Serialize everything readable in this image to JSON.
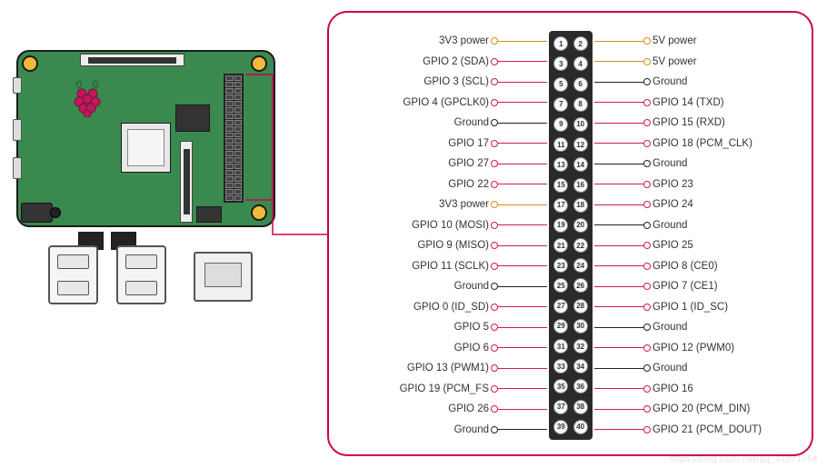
{
  "colors": {
    "pcb": "#3a8a4f",
    "pcb_border": "#1a1a1a",
    "hole": "#f4b93a",
    "panel_border": "#cc0052",
    "pin_header_bg": "#2a2a2a",
    "type_power": "#e08a1e",
    "type_ground": "#222222",
    "type_gpio": "#d11a5a",
    "wire_len_left_default": 58,
    "wire_len_right_default": 58
  },
  "board": {
    "logo_fill": "#c2185b",
    "logo_leaf": "#3a8a4f"
  },
  "pins_left": [
    {
      "n": 1,
      "label": "3V3 power",
      "type": "power"
    },
    {
      "n": 3,
      "label": "GPIO 2 (SDA)",
      "type": "gpio"
    },
    {
      "n": 5,
      "label": "GPIO 3 (SCL)",
      "type": "gpio"
    },
    {
      "n": 7,
      "label": "GPIO 4 (GPCLK0)",
      "type": "gpio"
    },
    {
      "n": 9,
      "label": "Ground",
      "type": "ground"
    },
    {
      "n": 11,
      "label": "GPIO 17",
      "type": "gpio"
    },
    {
      "n": 13,
      "label": "GPIO 27",
      "type": "gpio"
    },
    {
      "n": 15,
      "label": "GPIO 22",
      "type": "gpio"
    },
    {
      "n": 17,
      "label": "3V3 power",
      "type": "power"
    },
    {
      "n": 19,
      "label": "GPIO 10 (MOSI)",
      "type": "gpio"
    },
    {
      "n": 21,
      "label": "GPIO 9 (MISO)",
      "type": "gpio"
    },
    {
      "n": 23,
      "label": "GPIO 11 (SCLK)",
      "type": "gpio"
    },
    {
      "n": 25,
      "label": "Ground",
      "type": "ground"
    },
    {
      "n": 27,
      "label": "GPIO 0 (ID_SD)",
      "type": "gpio"
    },
    {
      "n": 29,
      "label": "GPIO 5",
      "type": "gpio"
    },
    {
      "n": 31,
      "label": "GPIO 6",
      "type": "gpio"
    },
    {
      "n": 33,
      "label": "GPIO 13 (PWM1)",
      "type": "gpio"
    },
    {
      "n": 35,
      "label": "GPIO 19 (PCM_FS",
      "type": "gpio"
    },
    {
      "n": 37,
      "label": "GPIO 26",
      "type": "gpio"
    },
    {
      "n": 39,
      "label": "Ground",
      "type": "ground"
    }
  ],
  "pins_right": [
    {
      "n": 2,
      "label": "5V power",
      "type": "power"
    },
    {
      "n": 4,
      "label": "5V power",
      "type": "power"
    },
    {
      "n": 6,
      "label": "Ground",
      "type": "ground"
    },
    {
      "n": 8,
      "label": "GPIO 14 (TXD)",
      "type": "gpio"
    },
    {
      "n": 10,
      "label": "GPIO 15 (RXD)",
      "type": "gpio"
    },
    {
      "n": 12,
      "label": "GPIO 18 (PCM_CLK)",
      "type": "gpio"
    },
    {
      "n": 14,
      "label": "Ground",
      "type": "ground"
    },
    {
      "n": 16,
      "label": "GPIO 23",
      "type": "gpio"
    },
    {
      "n": 18,
      "label": "GPIO 24",
      "type": "gpio"
    },
    {
      "n": 20,
      "label": "Ground",
      "type": "ground"
    },
    {
      "n": 22,
      "label": "GPIO 25",
      "type": "gpio"
    },
    {
      "n": 24,
      "label": "GPIO 8 (CE0)",
      "type": "gpio"
    },
    {
      "n": 26,
      "label": "GPIO 7 (CE1)",
      "type": "gpio"
    },
    {
      "n": 28,
      "label": "GPIO 1 (ID_SC)",
      "type": "gpio"
    },
    {
      "n": 30,
      "label": "Ground",
      "type": "ground"
    },
    {
      "n": 32,
      "label": "GPIO 12 (PWM0)",
      "type": "gpio"
    },
    {
      "n": 34,
      "label": "Ground",
      "type": "ground"
    },
    {
      "n": 36,
      "label": "GPIO 16",
      "type": "gpio"
    },
    {
      "n": 38,
      "label": "GPIO 20 (PCM_DIN)",
      "type": "gpio"
    },
    {
      "n": 40,
      "label": "GPIO 21 (PCM_DOUT)",
      "type": "gpio"
    }
  ],
  "watermark": "https://blog.csdn.net/qq_41071754"
}
